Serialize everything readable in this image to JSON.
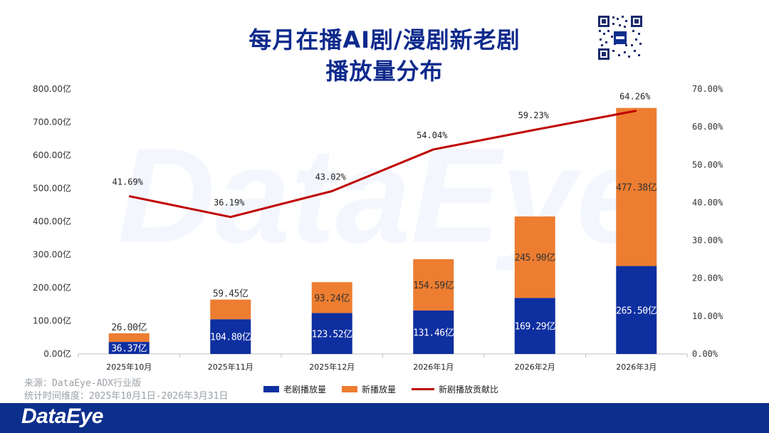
{
  "page": {
    "title_line1": "每月在播AI剧/漫剧新老剧",
    "title_line2": "播放量分布",
    "watermark": "DataEye",
    "footer_logo": "DataEye",
    "source": "来源：DataEye-ADX行业版",
    "period": "统计时间维度：2025年10月1日-2026年3月31日"
  },
  "colors": {
    "old": "#0e2fa0",
    "new": "#ed7d31",
    "line": "#c00000",
    "axis_text": "#333333"
  },
  "chart_data": {
    "type": "bar",
    "stacked": true,
    "categories": [
      "2025年10月",
      "2025年11月",
      "2025年12月",
      "2026年1月",
      "2026年2月",
      "2026年3月"
    ],
    "series": [
      {
        "name": "老剧播放量",
        "values": [
          36.37,
          104.8,
          123.52,
          131.46,
          169.29,
          265.5
        ],
        "labels": [
          "36.37亿",
          "104.80亿",
          "123.52亿",
          "131.46亿",
          "169.29亿",
          "265.50亿"
        ]
      },
      {
        "name": "新播放量",
        "values": [
          26.0,
          59.45,
          93.24,
          154.59,
          245.9,
          477.38
        ],
        "labels": [
          "26.00亿",
          "59.45亿",
          "93.24亿",
          "154.59亿",
          "245.90亿",
          "477.38亿"
        ]
      }
    ],
    "line_series": {
      "name": "新剧播放贡献比",
      "values": [
        41.69,
        36.19,
        43.02,
        54.04,
        59.23,
        64.26
      ],
      "labels": [
        "41.69%",
        "36.19%",
        "43.02%",
        "54.04%",
        "59.23%",
        "64.26%"
      ]
    },
    "ylim": [
      0,
      800
    ],
    "y2lim": [
      0,
      70
    ],
    "yticks": [
      "0.00亿",
      "100.00亿",
      "200.00亿",
      "300.00亿",
      "400.00亿",
      "500.00亿",
      "600.00亿",
      "700.00亿",
      "800.00亿"
    ],
    "y2ticks": [
      "0.00%",
      "10.00%",
      "20.00%",
      "30.00%",
      "40.00%",
      "50.00%",
      "60.00%",
      "70.00%"
    ],
    "legend_position": "bottom",
    "grid": false
  }
}
